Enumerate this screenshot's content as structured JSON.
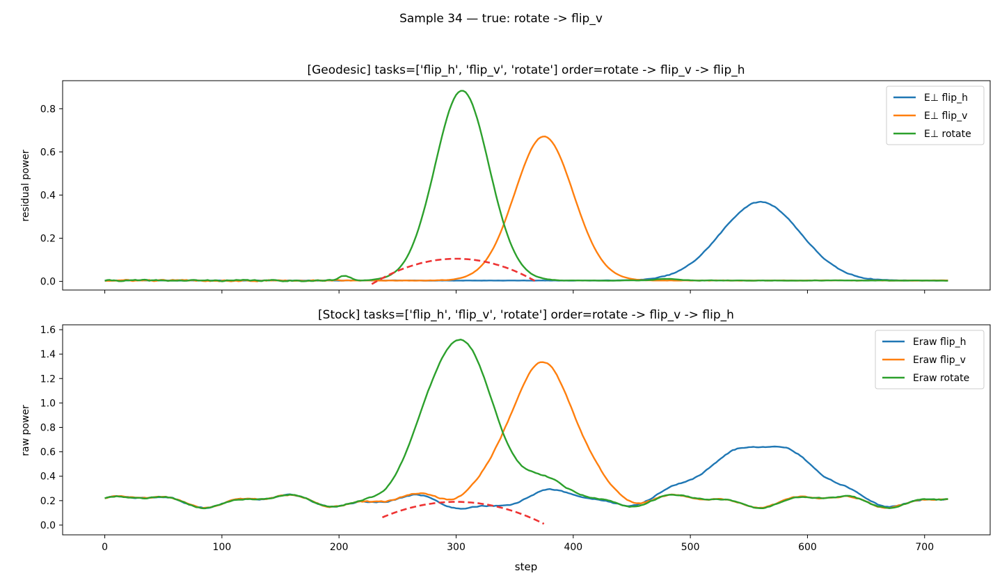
{
  "figure": {
    "suptitle": "Sample 34 — true: rotate -> flip_v"
  },
  "colors": {
    "flip_h": "#1f77b4",
    "flip_v": "#ff7f0e",
    "rotate": "#2ca02c",
    "fit": "#ee3333"
  },
  "chart_data": [
    {
      "type": "line",
      "title": "[Geodesic] tasks=['flip_h', 'flip_v', 'rotate'] order=rotate -> flip_v -> flip_h",
      "xlabel": "",
      "ylabel": "residual power",
      "xlim": [
        -36,
        756
      ],
      "ylim": [
        -0.04,
        0.93
      ],
      "xticks": [
        0,
        100,
        200,
        300,
        400,
        500,
        600,
        700
      ],
      "xtick_labels_shown": false,
      "yticks": [
        0.0,
        0.2,
        0.4,
        0.6,
        0.8
      ],
      "ytick_labels": [
        "0.0",
        "0.2",
        "0.4",
        "0.6",
        "0.8"
      ],
      "grid": false,
      "legend_position": "upper-right",
      "series": [
        {
          "name": "E⊥ flip_h",
          "color_key": "flip_h",
          "baseline": 0.004,
          "noise": 0.004,
          "noise_range": [
            470,
            665
          ],
          "peaks": [
            {
              "center": 560,
              "height": 0.364,
              "sigma": 34
            }
          ]
        },
        {
          "name": "E⊥ flip_v",
          "color_key": "flip_v",
          "baseline": 0.004,
          "noise": 0.006,
          "noise_range": [
            0,
            210
          ],
          "peaks": [
            {
              "center": 375,
              "height": 0.668,
              "sigma": 25
            }
          ]
        },
        {
          "name": "E⊥ rotate",
          "color_key": "rotate",
          "baseline": 0.004,
          "noise": 0.006,
          "noise_range": [
            0,
            210
          ],
          "peaks": [
            {
              "center": 305,
              "height": 0.88,
              "sigma": 23
            },
            {
              "center": 205,
              "height": 0.02,
              "sigma": 5
            },
            {
              "center": 480,
              "height": 0.008,
              "sigma": 10
            }
          ]
        }
      ],
      "fit_curve": {
        "style": "dashed",
        "x_range": [
          228,
          368
        ],
        "vertex": [
          300,
          0.105
        ],
        "end_value": 0.0
      }
    },
    {
      "type": "line",
      "title": "[Stock] tasks=['flip_h', 'flip_v', 'rotate'] order=rotate -> flip_v -> flip_h",
      "xlabel": "step",
      "ylabel": "raw power",
      "xlim": [
        -36,
        756
      ],
      "ylim": [
        -0.08,
        1.64
      ],
      "xticks": [
        0,
        100,
        200,
        300,
        400,
        500,
        600,
        700
      ],
      "xtick_labels": [
        "0",
        "100",
        "200",
        "300",
        "400",
        "500",
        "600",
        "700"
      ],
      "yticks": [
        0.0,
        0.2,
        0.4,
        0.6,
        0.8,
        1.0,
        1.2,
        1.4,
        1.6
      ],
      "ytick_labels": [
        "0.0",
        "0.2",
        "0.4",
        "0.6",
        "0.8",
        "1.0",
        "1.2",
        "1.4",
        "1.6"
      ],
      "grid": false,
      "legend_position": "upper-right",
      "series": [
        {
          "name": "Eraw flip_h",
          "color_key": "flip_h",
          "baseline_wave": true,
          "noise": 0.008,
          "peaks": [
            {
              "center": 560,
              "height": 0.5,
              "sigma": 38
            },
            {
              "center": 305,
              "height": -0.03,
              "sigma": 25
            },
            {
              "center": 395,
              "height": 0.05,
              "sigma": 18
            }
          ]
        },
        {
          "name": "Eraw flip_v",
          "color_key": "flip_v",
          "baseline_wave": true,
          "noise": 0.008,
          "peaks": [
            {
              "center": 373,
              "height": 1.08,
              "sigma": 30
            }
          ]
        },
        {
          "name": "Eraw rotate",
          "color_key": "rotate",
          "baseline_wave": true,
          "noise": 0.008,
          "peaks": [
            {
              "center": 303,
              "height": 1.35,
              "sigma": 28
            },
            {
              "center": 380,
              "height": 0.1,
              "sigma": 25
            }
          ]
        }
      ],
      "baseline_wave": {
        "mean": 0.2,
        "amp1": 0.04,
        "period1": 117,
        "phase1": 0.0,
        "amp2": 0.02,
        "period2": 53,
        "phase2": 1.1
      },
      "fit_curve": {
        "style": "dashed",
        "x_range": [
          237,
          375
        ],
        "vertex": [
          300,
          0.19
        ],
        "end_value": 0.01
      }
    }
  ]
}
